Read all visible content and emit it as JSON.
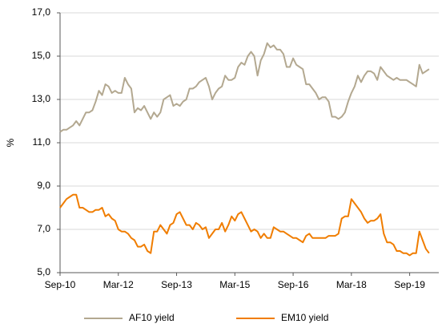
{
  "chart_data": {
    "type": "line",
    "y_label": "%",
    "x": [
      "2010-09",
      "2010-10",
      "2010-11",
      "2010-12",
      "2011-01",
      "2011-02",
      "2011-03",
      "2011-04",
      "2011-05",
      "2011-06",
      "2011-07",
      "2011-08",
      "2011-09",
      "2011-10",
      "2011-11",
      "2011-12",
      "2012-01",
      "2012-02",
      "2012-03",
      "2012-04",
      "2012-05",
      "2012-06",
      "2012-07",
      "2012-08",
      "2012-09",
      "2012-10",
      "2012-11",
      "2012-12",
      "2013-01",
      "2013-02",
      "2013-03",
      "2013-04",
      "2013-05",
      "2013-06",
      "2013-07",
      "2013-08",
      "2013-09",
      "2013-10",
      "2013-11",
      "2013-12",
      "2014-01",
      "2014-02",
      "2014-03",
      "2014-04",
      "2014-05",
      "2014-06",
      "2014-07",
      "2014-08",
      "2014-09",
      "2014-10",
      "2014-11",
      "2014-12",
      "2015-01",
      "2015-02",
      "2015-03",
      "2015-04",
      "2015-05",
      "2015-06",
      "2015-07",
      "2015-08",
      "2015-09",
      "2015-10",
      "2015-11",
      "2015-12",
      "2016-01",
      "2016-02",
      "2016-03",
      "2016-04",
      "2016-05",
      "2016-06",
      "2016-07",
      "2016-08",
      "2016-09",
      "2016-10",
      "2016-11",
      "2016-12",
      "2017-01",
      "2017-02",
      "2017-03",
      "2017-04",
      "2017-05",
      "2017-06",
      "2017-07",
      "2017-08",
      "2017-09",
      "2017-10",
      "2017-11",
      "2017-12",
      "2018-01",
      "2018-02",
      "2018-03",
      "2018-04",
      "2018-05",
      "2018-06",
      "2018-07",
      "2018-08",
      "2018-09",
      "2018-10",
      "2018-11",
      "2018-12",
      "2019-01",
      "2019-02",
      "2019-03",
      "2019-04",
      "2019-05",
      "2019-06",
      "2019-07",
      "2019-08",
      "2019-09",
      "2019-10",
      "2019-11",
      "2019-12",
      "2020-01",
      "2020-02",
      "2020-03"
    ],
    "series": [
      {
        "name": "AF10 yield",
        "color": "#b3a890",
        "values": [
          11.5,
          11.6,
          11.6,
          11.7,
          11.8,
          12.0,
          11.8,
          12.1,
          12.4,
          12.4,
          12.5,
          12.9,
          13.4,
          13.2,
          13.7,
          13.6,
          13.3,
          13.4,
          13.3,
          13.3,
          14.0,
          13.7,
          13.5,
          12.4,
          12.6,
          12.5,
          12.7,
          12.4,
          12.1,
          12.4,
          12.2,
          12.4,
          13.0,
          13.1,
          13.2,
          12.7,
          12.8,
          12.7,
          12.9,
          13.0,
          13.5,
          13.5,
          13.6,
          13.8,
          13.9,
          14.0,
          13.6,
          13.0,
          13.3,
          13.5,
          13.6,
          14.1,
          13.9,
          13.9,
          14.0,
          14.5,
          14.7,
          14.6,
          15.0,
          15.2,
          15.0,
          14.1,
          14.8,
          15.1,
          15.6,
          15.4,
          15.5,
          15.3,
          15.3,
          15.1,
          14.5,
          14.5,
          14.9,
          14.6,
          14.5,
          14.4,
          13.7,
          13.7,
          13.5,
          13.3,
          13.0,
          13.1,
          13.1,
          12.9,
          12.2,
          12.2,
          12.1,
          12.2,
          12.4,
          12.9,
          13.3,
          13.6,
          14.1,
          13.8,
          14.1,
          14.3,
          14.3,
          14.2,
          13.9,
          14.5,
          14.3,
          14.1,
          14.0,
          13.9,
          14.0,
          13.9,
          13.9,
          13.9,
          13.8,
          13.7,
          13.6,
          14.6,
          14.2,
          14.3,
          14.4
        ]
      },
      {
        "name": "EM10 yield",
        "color": "#f07d00",
        "values": [
          8.0,
          8.2,
          8.4,
          8.5,
          8.6,
          8.6,
          8.0,
          8.0,
          7.9,
          7.8,
          7.8,
          7.9,
          7.9,
          8.0,
          7.6,
          7.7,
          7.5,
          7.4,
          7.0,
          6.9,
          6.9,
          6.8,
          6.6,
          6.5,
          6.2,
          6.2,
          6.3,
          6.0,
          5.9,
          6.9,
          6.9,
          7.2,
          7.0,
          6.8,
          7.2,
          7.3,
          7.7,
          7.8,
          7.5,
          7.2,
          7.2,
          7.0,
          7.3,
          7.2,
          7.0,
          7.1,
          6.6,
          6.8,
          7.0,
          7.0,
          7.3,
          6.9,
          7.2,
          7.6,
          7.4,
          7.7,
          7.8,
          7.5,
          7.2,
          6.9,
          7.0,
          6.9,
          6.6,
          6.8,
          6.6,
          6.6,
          7.1,
          7.0,
          6.9,
          6.9,
          6.8,
          6.7,
          6.6,
          6.6,
          6.5,
          6.4,
          6.7,
          6.8,
          6.6,
          6.6,
          6.6,
          6.6,
          6.6,
          6.7,
          6.7,
          6.7,
          6.8,
          7.5,
          7.6,
          7.6,
          8.4,
          8.2,
          8.0,
          7.8,
          7.5,
          7.3,
          7.4,
          7.4,
          7.5,
          7.7,
          6.8,
          6.4,
          6.4,
          6.3,
          6.0,
          6.0,
          5.9,
          5.9,
          5.8,
          5.9,
          5.9,
          6.9,
          6.5,
          6.1,
          5.9
        ]
      }
    ],
    "xlim": [
      "2010-09",
      "2020-06"
    ],
    "xticks": [
      {
        "value": "2010-09",
        "label": "Sep-10"
      },
      {
        "value": "2012-03",
        "label": "Mar-12"
      },
      {
        "value": "2013-09",
        "label": "Sep-13"
      },
      {
        "value": "2015-03",
        "label": "Mar-15"
      },
      {
        "value": "2016-09",
        "label": "Sep-16"
      },
      {
        "value": "2018-03",
        "label": "Mar-18"
      },
      {
        "value": "2019-09",
        "label": "Sep-19"
      }
    ],
    "ylim": [
      5,
      17
    ],
    "yticks": [
      {
        "value": 5,
        "label": "5,0"
      },
      {
        "value": 7,
        "label": "7,0"
      },
      {
        "value": 9,
        "label": "9,0"
      },
      {
        "value": 11,
        "label": "11,0"
      },
      {
        "value": 13,
        "label": "13,0"
      },
      {
        "value": 15,
        "label": "15,0"
      },
      {
        "value": 17,
        "label": "17,0"
      }
    ],
    "grid": true
  }
}
